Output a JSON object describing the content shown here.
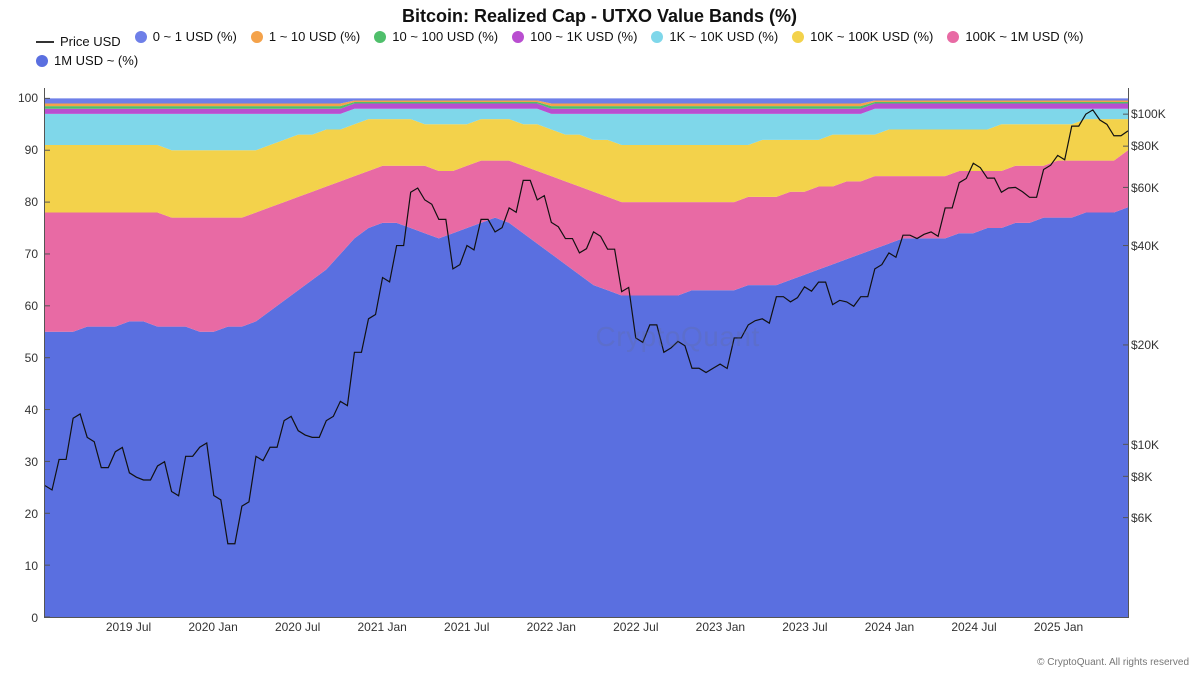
{
  "title": "Bitcoin: Realized Cap - UTXO Value Bands (%)",
  "title_fontsize": 18,
  "watermark": "CryptoQuant",
  "copyright": "© CryptoQuant. All rights reserved",
  "background_color": "#ffffff",
  "chart": {
    "type": "stacked-area-with-line",
    "x_axis": {
      "labels": [
        "2019 Jul",
        "2020 Jan",
        "2020 Jul",
        "2021 Jan",
        "2021 Jul",
        "2022 Jan",
        "2022 Jul",
        "2023 Jan",
        "2023 Jul",
        "2024 Jan",
        "2024 Jul",
        "2025 Jan"
      ],
      "label_fontsize": 12
    },
    "y_left": {
      "ticks": [
        0,
        10,
        20,
        30,
        40,
        50,
        60,
        70,
        80,
        90,
        100
      ],
      "min": 0,
      "max": 102,
      "label_fontsize": 12
    },
    "y_right": {
      "scale": "log",
      "ticks": [
        6000,
        8000,
        10000,
        20000,
        40000,
        60000,
        80000,
        100000
      ],
      "tick_labels": [
        "$6K",
        "$8K",
        "$10K",
        "$20K",
        "$40K",
        "$60K",
        "$80K",
        "$100K"
      ],
      "min": 3000,
      "max": 120000,
      "label_fontsize": 12
    },
    "legend": {
      "fontsize": 13,
      "items": [
        {
          "key": "price",
          "label": "Price USD",
          "kind": "line",
          "color": "#333333"
        },
        {
          "key": "b0",
          "label": "0 ~ 1 USD (%)",
          "kind": "fill",
          "color": "#6e7fe8"
        },
        {
          "key": "b1",
          "label": "1 ~ 10 USD (%)",
          "kind": "fill",
          "color": "#f4a24a"
        },
        {
          "key": "b2",
          "label": "10 ~ 100 USD (%)",
          "kind": "fill",
          "color": "#4fbf6b"
        },
        {
          "key": "b3",
          "label": "100 ~ 1K USD (%)",
          "kind": "fill",
          "color": "#b94ed0"
        },
        {
          "key": "b4",
          "label": "1K ~ 10K USD (%)",
          "kind": "fill",
          "color": "#7fd7ea"
        },
        {
          "key": "b5",
          "label": "10K ~ 100K USD (%)",
          "kind": "fill",
          "color": "#f3d24b"
        },
        {
          "key": "b6",
          "label": "100K ~ 1M USD (%)",
          "kind": "fill",
          "color": "#e86aa4"
        },
        {
          "key": "b7",
          "label": "1M USD ~ (%)",
          "kind": "fill",
          "color": "#5a6fe0"
        }
      ]
    },
    "n_points": 78,
    "bands_order_bottom_to_top": [
      "b7",
      "b6",
      "b5",
      "b4",
      "b3",
      "b2",
      "b1",
      "b0"
    ],
    "band_colors": {
      "b0": "#6e7fe8",
      "b1": "#f4a24a",
      "b2": "#4fbf6b",
      "b3": "#b94ed0",
      "b4": "#7fd7ea",
      "b5": "#f3d24b",
      "b6": "#e86aa4",
      "b7": "#5a6fe0"
    },
    "bands_cumulative_top": {
      "b7": [
        55,
        55,
        55,
        56,
        56,
        56,
        57,
        57,
        56,
        56,
        56,
        55,
        55,
        56,
        56,
        57,
        59,
        61,
        63,
        65,
        67,
        70,
        73,
        75,
        76,
        76,
        75,
        74,
        73,
        74,
        75,
        76,
        77,
        76,
        74,
        72,
        70,
        68,
        66,
        64,
        63,
        62,
        62,
        62,
        62,
        62,
        63,
        63,
        63,
        63,
        64,
        64,
        64,
        65,
        66,
        67,
        68,
        69,
        70,
        71,
        72,
        73,
        73,
        73,
        73,
        74,
        74,
        75,
        75,
        76,
        76,
        77,
        77,
        77,
        78,
        78,
        78,
        79
      ],
      "b6": [
        78,
        78,
        78,
        78,
        78,
        78,
        78,
        78,
        78,
        77,
        77,
        77,
        77,
        77,
        77,
        78,
        79,
        80,
        81,
        82,
        83,
        84,
        85,
        86,
        87,
        87,
        87,
        87,
        86,
        86,
        87,
        88,
        88,
        88,
        87,
        86,
        85,
        84,
        83,
        82,
        81,
        80,
        80,
        80,
        80,
        80,
        80,
        80,
        80,
        80,
        81,
        81,
        81,
        82,
        82,
        83,
        83,
        84,
        84,
        85,
        85,
        85,
        85,
        85,
        85,
        86,
        86,
        86,
        86,
        87,
        87,
        87,
        88,
        88,
        88,
        88,
        88,
        90
      ],
      "b5": [
        91,
        91,
        91,
        91,
        91,
        91,
        91,
        91,
        91,
        90,
        90,
        90,
        90,
        90,
        90,
        90,
        91,
        92,
        93,
        93,
        94,
        94,
        95,
        96,
        96,
        96,
        96,
        95,
        95,
        95,
        95,
        96,
        96,
        96,
        95,
        95,
        94,
        93,
        93,
        92,
        92,
        91,
        91,
        91,
        91,
        91,
        91,
        91,
        91,
        91,
        91,
        92,
        92,
        92,
        92,
        92,
        93,
        93,
        93,
        93,
        94,
        94,
        94,
        94,
        94,
        94,
        94,
        94,
        95,
        95,
        95,
        95,
        95,
        95,
        96,
        96,
        96,
        96
      ],
      "b4": [
        97,
        97,
        97,
        97,
        97,
        97,
        97,
        97,
        97,
        97,
        97,
        97,
        97,
        97,
        97,
        97,
        97,
        97,
        97,
        97,
        97,
        97,
        98,
        98,
        98,
        98,
        98,
        98,
        98,
        98,
        98,
        98,
        98,
        98,
        98,
        98,
        97,
        97,
        97,
        97,
        97,
        97,
        97,
        97,
        97,
        97,
        97,
        97,
        97,
        97,
        97,
        97,
        97,
        97,
        97,
        97,
        97,
        97,
        97,
        98,
        98,
        98,
        98,
        98,
        98,
        98,
        98,
        98,
        98,
        98,
        98,
        98,
        98,
        98,
        98,
        98,
        98,
        98
      ],
      "b3": [
        98,
        98,
        98,
        98,
        98,
        98,
        98,
        98,
        98,
        98,
        98,
        98,
        98,
        98,
        98,
        98,
        98,
        98,
        98,
        98,
        98,
        98,
        99,
        99,
        99,
        99,
        99,
        99,
        99,
        99,
        99,
        99,
        99,
        99,
        99,
        99,
        98,
        98,
        98,
        98,
        98,
        98,
        98,
        98,
        98,
        98,
        98,
        98,
        98,
        98,
        98,
        98,
        98,
        98,
        98,
        98,
        98,
        98,
        98,
        99,
        99,
        99,
        99,
        99,
        99,
        99,
        99,
        99,
        99,
        99,
        99,
        99,
        99,
        99,
        99,
        99,
        99,
        99
      ],
      "b2": [
        98.5,
        98.5,
        98.5,
        98.5,
        98.5,
        98.5,
        98.5,
        98.5,
        98.5,
        98.5,
        98.5,
        98.5,
        98.5,
        98.5,
        98.5,
        98.5,
        98.5,
        98.5,
        98.5,
        98.5,
        98.5,
        98.5,
        99.3,
        99.3,
        99.3,
        99.3,
        99.3,
        99.3,
        99.3,
        99.3,
        99.3,
        99.3,
        99.3,
        99.3,
        99.3,
        99.3,
        98.5,
        98.5,
        98.5,
        98.5,
        98.5,
        98.5,
        98.5,
        98.5,
        98.5,
        98.5,
        98.5,
        98.5,
        98.5,
        98.5,
        98.5,
        98.5,
        98.5,
        98.5,
        98.5,
        98.5,
        98.5,
        98.5,
        98.5,
        99.3,
        99.3,
        99.3,
        99.3,
        99.3,
        99.3,
        99.3,
        99.3,
        99.3,
        99.3,
        99.3,
        99.3,
        99.3,
        99.3,
        99.3,
        99.3,
        99.3,
        99.3,
        99.3
      ],
      "b1": [
        99,
        99,
        99,
        99,
        99,
        99,
        99,
        99,
        99,
        99,
        99,
        99,
        99,
        99,
        99,
        99,
        99,
        99,
        99,
        99,
        99,
        99,
        99.6,
        99.6,
        99.6,
        99.6,
        99.6,
        99.6,
        99.6,
        99.6,
        99.6,
        99.6,
        99.6,
        99.6,
        99.6,
        99.6,
        99,
        99,
        99,
        99,
        99,
        99,
        99,
        99,
        99,
        99,
        99,
        99,
        99,
        99,
        99,
        99,
        99,
        99,
        99,
        99,
        99,
        99,
        99,
        99.6,
        99.6,
        99.6,
        99.6,
        99.6,
        99.6,
        99.6,
        99.6,
        99.6,
        99.6,
        99.6,
        99.6,
        99.6,
        99.6,
        99.6,
        99.6,
        99.6,
        99.6,
        99.6
      ],
      "b0": [
        100,
        100,
        100,
        100,
        100,
        100,
        100,
        100,
        100,
        100,
        100,
        100,
        100,
        100,
        100,
        100,
        100,
        100,
        100,
        100,
        100,
        100,
        100,
        100,
        100,
        100,
        100,
        100,
        100,
        100,
        100,
        100,
        100,
        100,
        100,
        100,
        100,
        100,
        100,
        100,
        100,
        100,
        100,
        100,
        100,
        100,
        100,
        100,
        100,
        100,
        100,
        100,
        100,
        100,
        100,
        100,
        100,
        100,
        100,
        100,
        100,
        100,
        100,
        100,
        100,
        100,
        100,
        100,
        100,
        100,
        100,
        100,
        100,
        100,
        100,
        100,
        100,
        100
      ]
    },
    "price_usd": [
      7500,
      9000,
      12000,
      10500,
      8500,
      9500,
      8200,
      7800,
      8600,
      7200,
      9200,
      9800,
      7000,
      5000,
      6500,
      9200,
      9800,
      11800,
      11000,
      10500,
      11800,
      13500,
      19000,
      24000,
      32000,
      40000,
      58000,
      55000,
      48000,
      34000,
      40000,
      48000,
      44000,
      52000,
      63000,
      55000,
      47000,
      42000,
      38000,
      44000,
      39000,
      29000,
      21000,
      23000,
      19000,
      20500,
      17000,
      16500,
      17500,
      21000,
      23000,
      24000,
      28000,
      27000,
      30000,
      31000,
      26500,
      27000,
      28000,
      34000,
      38000,
      43000,
      42000,
      44000,
      52000,
      62000,
      71000,
      64000,
      58000,
      60000,
      56000,
      68000,
      75000,
      92000,
      100000,
      96000,
      86000,
      89000
    ],
    "price_line": {
      "color": "#111111",
      "width": 1.2
    }
  }
}
